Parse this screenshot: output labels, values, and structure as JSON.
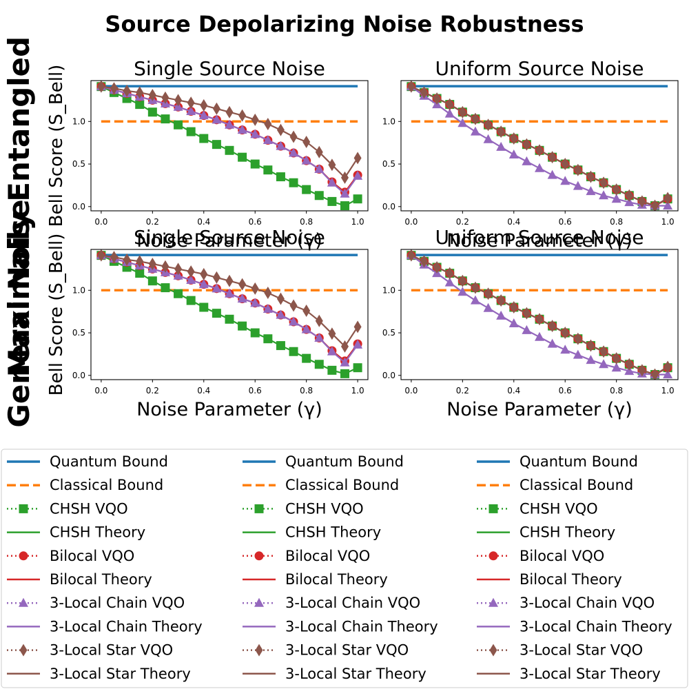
{
  "figure": {
    "title": "Source Depolarizing Noise Robustness",
    "row_labels": [
      "Maximally Entangled",
      "General Noise"
    ]
  },
  "colors": {
    "quantum": "#1f77b4",
    "classical": "#ff7f0e",
    "chsh": "#2ca02c",
    "bilocal": "#d62728",
    "chain": "#9467bd",
    "star": "#8c564b"
  },
  "legend_labels": [
    "Quantum Bound",
    "Classical Bound",
    "CHSH VQO",
    "CHSH Theory",
    "Bilocal VQO",
    "Bilocal Theory",
    "3-Local Chain VQO",
    "3-Local Chain Theory",
    "3-Local Star VQO",
    "3-Local Star Theory"
  ],
  "chart_data": [
    {
      "type": "line",
      "title": "Single Source Noise",
      "xlabel": "Noise Parameter (γ)",
      "ylabel": "Bell Score (S_Bell)",
      "xlim": [
        -0.04,
        1.04
      ],
      "ylim": [
        -0.05,
        1.48
      ],
      "xticks": [
        "0.0",
        "0.2",
        "0.4",
        "0.6",
        "0.8",
        "1.0"
      ],
      "yticks": [
        "0.0",
        "0.5",
        "1.0"
      ],
      "x": [
        0.0,
        0.05,
        0.1,
        0.15,
        0.2,
        0.25,
        0.3,
        0.35,
        0.4,
        0.45,
        0.5,
        0.55,
        0.6,
        0.65,
        0.7,
        0.75,
        0.8,
        0.85,
        0.9,
        0.95,
        1.0
      ],
      "quantum_bound": 1.414,
      "classical_bound": 1.0,
      "series": [
        {
          "name": "CHSH VQO",
          "values": [
            1.41,
            1.34,
            1.27,
            1.2,
            1.11,
            1.03,
            0.96,
            0.88,
            0.8,
            0.73,
            0.66,
            0.58,
            0.5,
            0.43,
            0.35,
            0.28,
            0.2,
            0.13,
            0.06,
            0.01,
            0.09
          ]
        },
        {
          "name": "Bilocal VQO",
          "values": [
            1.41,
            1.37,
            1.33,
            1.29,
            1.25,
            1.21,
            1.17,
            1.12,
            1.07,
            1.02,
            0.96,
            0.9,
            0.85,
            0.78,
            0.71,
            0.63,
            0.54,
            0.44,
            0.29,
            0.17,
            0.37
          ]
        },
        {
          "name": "3-Local Chain VQO",
          "values": [
            1.41,
            1.37,
            1.33,
            1.29,
            1.25,
            1.21,
            1.17,
            1.12,
            1.07,
            1.02,
            0.96,
            0.9,
            0.85,
            0.78,
            0.71,
            0.63,
            0.54,
            0.44,
            0.28,
            0.15,
            0.36
          ]
        },
        {
          "name": "3-Local Star VQO",
          "values": [
            1.41,
            1.39,
            1.36,
            1.34,
            1.31,
            1.28,
            1.25,
            1.22,
            1.19,
            1.15,
            1.11,
            1.07,
            1.02,
            0.97,
            0.9,
            0.82,
            0.76,
            0.64,
            0.49,
            0.34,
            0.57
          ]
        }
      ]
    },
    {
      "type": "line",
      "title": "Uniform Source Noise",
      "xlabel": "Noise Parameter (γ)",
      "ylabel": "",
      "xlim": [
        -0.04,
        1.04
      ],
      "ylim": [
        -0.05,
        1.48
      ],
      "xticks": [
        "0.0",
        "0.2",
        "0.4",
        "0.6",
        "0.8",
        "1.0"
      ],
      "yticks": [
        "0.0",
        "0.5",
        "1.0"
      ],
      "x": [
        0.0,
        0.05,
        0.1,
        0.15,
        0.2,
        0.25,
        0.3,
        0.35,
        0.4,
        0.45,
        0.5,
        0.55,
        0.6,
        0.65,
        0.7,
        0.75,
        0.8,
        0.85,
        0.9,
        0.95,
        1.0
      ],
      "quantum_bound": 1.414,
      "classical_bound": 1.0,
      "series": [
        {
          "name": "CHSH VQO",
          "values": [
            1.41,
            1.34,
            1.27,
            1.2,
            1.11,
            1.03,
            0.96,
            0.88,
            0.8,
            0.73,
            0.66,
            0.58,
            0.5,
            0.43,
            0.35,
            0.28,
            0.2,
            0.13,
            0.06,
            0.01,
            0.09
          ]
        },
        {
          "name": "Bilocal VQO",
          "values": [
            1.41,
            1.34,
            1.27,
            1.2,
            1.11,
            1.03,
            0.96,
            0.88,
            0.8,
            0.73,
            0.66,
            0.58,
            0.5,
            0.43,
            0.35,
            0.28,
            0.2,
            0.13,
            0.06,
            0.01,
            0.09
          ]
        },
        {
          "name": "3-Local Chain VQO",
          "values": [
            1.41,
            1.3,
            1.2,
            1.09,
            0.98,
            0.88,
            0.79,
            0.7,
            0.61,
            0.53,
            0.45,
            0.37,
            0.3,
            0.24,
            0.18,
            0.13,
            0.09,
            0.05,
            0.02,
            0.01,
            0.01
          ]
        },
        {
          "name": "3-Local Star VQO",
          "values": [
            1.41,
            1.34,
            1.27,
            1.2,
            1.11,
            1.03,
            0.96,
            0.88,
            0.8,
            0.73,
            0.66,
            0.58,
            0.5,
            0.43,
            0.35,
            0.28,
            0.2,
            0.13,
            0.06,
            0.01,
            0.1
          ]
        }
      ]
    },
    {
      "type": "line",
      "title": "Single Source Noise",
      "xlabel": "Noise Parameter (γ)",
      "ylabel": "Bell Score (S_Bell)",
      "xlim": [
        -0.04,
        1.04
      ],
      "ylim": [
        -0.05,
        1.48
      ],
      "xticks": [
        "0.0",
        "0.2",
        "0.4",
        "0.6",
        "0.8",
        "1.0"
      ],
      "yticks": [
        "0.0",
        "0.5",
        "1.0"
      ],
      "x": [
        0.0,
        0.05,
        0.1,
        0.15,
        0.2,
        0.25,
        0.3,
        0.35,
        0.4,
        0.45,
        0.5,
        0.55,
        0.6,
        0.65,
        0.7,
        0.75,
        0.8,
        0.85,
        0.9,
        0.95,
        1.0
      ],
      "quantum_bound": 1.414,
      "classical_bound": 1.0,
      "series": [
        {
          "name": "CHSH VQO",
          "values": [
            1.41,
            1.34,
            1.27,
            1.2,
            1.11,
            1.03,
            0.96,
            0.88,
            0.8,
            0.73,
            0.66,
            0.58,
            0.5,
            0.43,
            0.35,
            0.28,
            0.2,
            0.13,
            0.06,
            0.02,
            0.09
          ]
        },
        {
          "name": "Bilocal VQO",
          "values": [
            1.41,
            1.37,
            1.33,
            1.29,
            1.25,
            1.21,
            1.17,
            1.12,
            1.07,
            1.02,
            0.96,
            0.9,
            0.85,
            0.78,
            0.71,
            0.63,
            0.54,
            0.44,
            0.29,
            0.17,
            0.37
          ]
        },
        {
          "name": "3-Local Chain VQO",
          "values": [
            1.41,
            1.37,
            1.33,
            1.29,
            1.25,
            1.21,
            1.17,
            1.12,
            1.07,
            1.02,
            0.96,
            0.9,
            0.85,
            0.78,
            0.71,
            0.63,
            0.54,
            0.44,
            0.28,
            0.15,
            0.36
          ]
        },
        {
          "name": "3-Local Star VQO",
          "values": [
            1.41,
            1.39,
            1.36,
            1.34,
            1.31,
            1.28,
            1.25,
            1.22,
            1.19,
            1.15,
            1.11,
            1.07,
            1.02,
            0.97,
            0.9,
            0.82,
            0.76,
            0.64,
            0.49,
            0.34,
            0.57
          ]
        }
      ]
    },
    {
      "type": "line",
      "title": "Uniform Source Noise",
      "xlabel": "Noise Parameter (γ)",
      "ylabel": "",
      "xlim": [
        -0.04,
        1.04
      ],
      "ylim": [
        -0.05,
        1.48
      ],
      "xticks": [
        "0.0",
        "0.2",
        "0.4",
        "0.6",
        "0.8",
        "1.0"
      ],
      "yticks": [
        "0.0",
        "0.5",
        "1.0"
      ],
      "x": [
        0.0,
        0.05,
        0.1,
        0.15,
        0.2,
        0.25,
        0.3,
        0.35,
        0.4,
        0.45,
        0.5,
        0.55,
        0.6,
        0.65,
        0.7,
        0.75,
        0.8,
        0.85,
        0.9,
        0.95,
        1.0
      ],
      "quantum_bound": 1.414,
      "classical_bound": 1.0,
      "series": [
        {
          "name": "CHSH VQO",
          "values": [
            1.41,
            1.34,
            1.27,
            1.2,
            1.11,
            1.03,
            0.96,
            0.88,
            0.8,
            0.73,
            0.66,
            0.58,
            0.5,
            0.43,
            0.35,
            0.28,
            0.2,
            0.13,
            0.06,
            0.01,
            0.09
          ]
        },
        {
          "name": "Bilocal VQO",
          "values": [
            1.41,
            1.34,
            1.27,
            1.2,
            1.11,
            1.03,
            0.96,
            0.88,
            0.8,
            0.73,
            0.66,
            0.58,
            0.5,
            0.43,
            0.35,
            0.28,
            0.2,
            0.13,
            0.06,
            0.01,
            0.09
          ]
        },
        {
          "name": "3-Local Chain VQO",
          "values": [
            1.41,
            1.3,
            1.2,
            1.09,
            0.98,
            0.88,
            0.79,
            0.7,
            0.61,
            0.53,
            0.45,
            0.37,
            0.3,
            0.24,
            0.18,
            0.13,
            0.09,
            0.05,
            0.02,
            0.01,
            0.01
          ]
        },
        {
          "name": "3-Local Star VQO",
          "values": [
            1.41,
            1.34,
            1.27,
            1.2,
            1.11,
            1.03,
            0.96,
            0.88,
            0.8,
            0.73,
            0.66,
            0.58,
            0.5,
            0.43,
            0.35,
            0.28,
            0.2,
            0.13,
            0.06,
            0.01,
            0.1
          ]
        }
      ]
    }
  ]
}
